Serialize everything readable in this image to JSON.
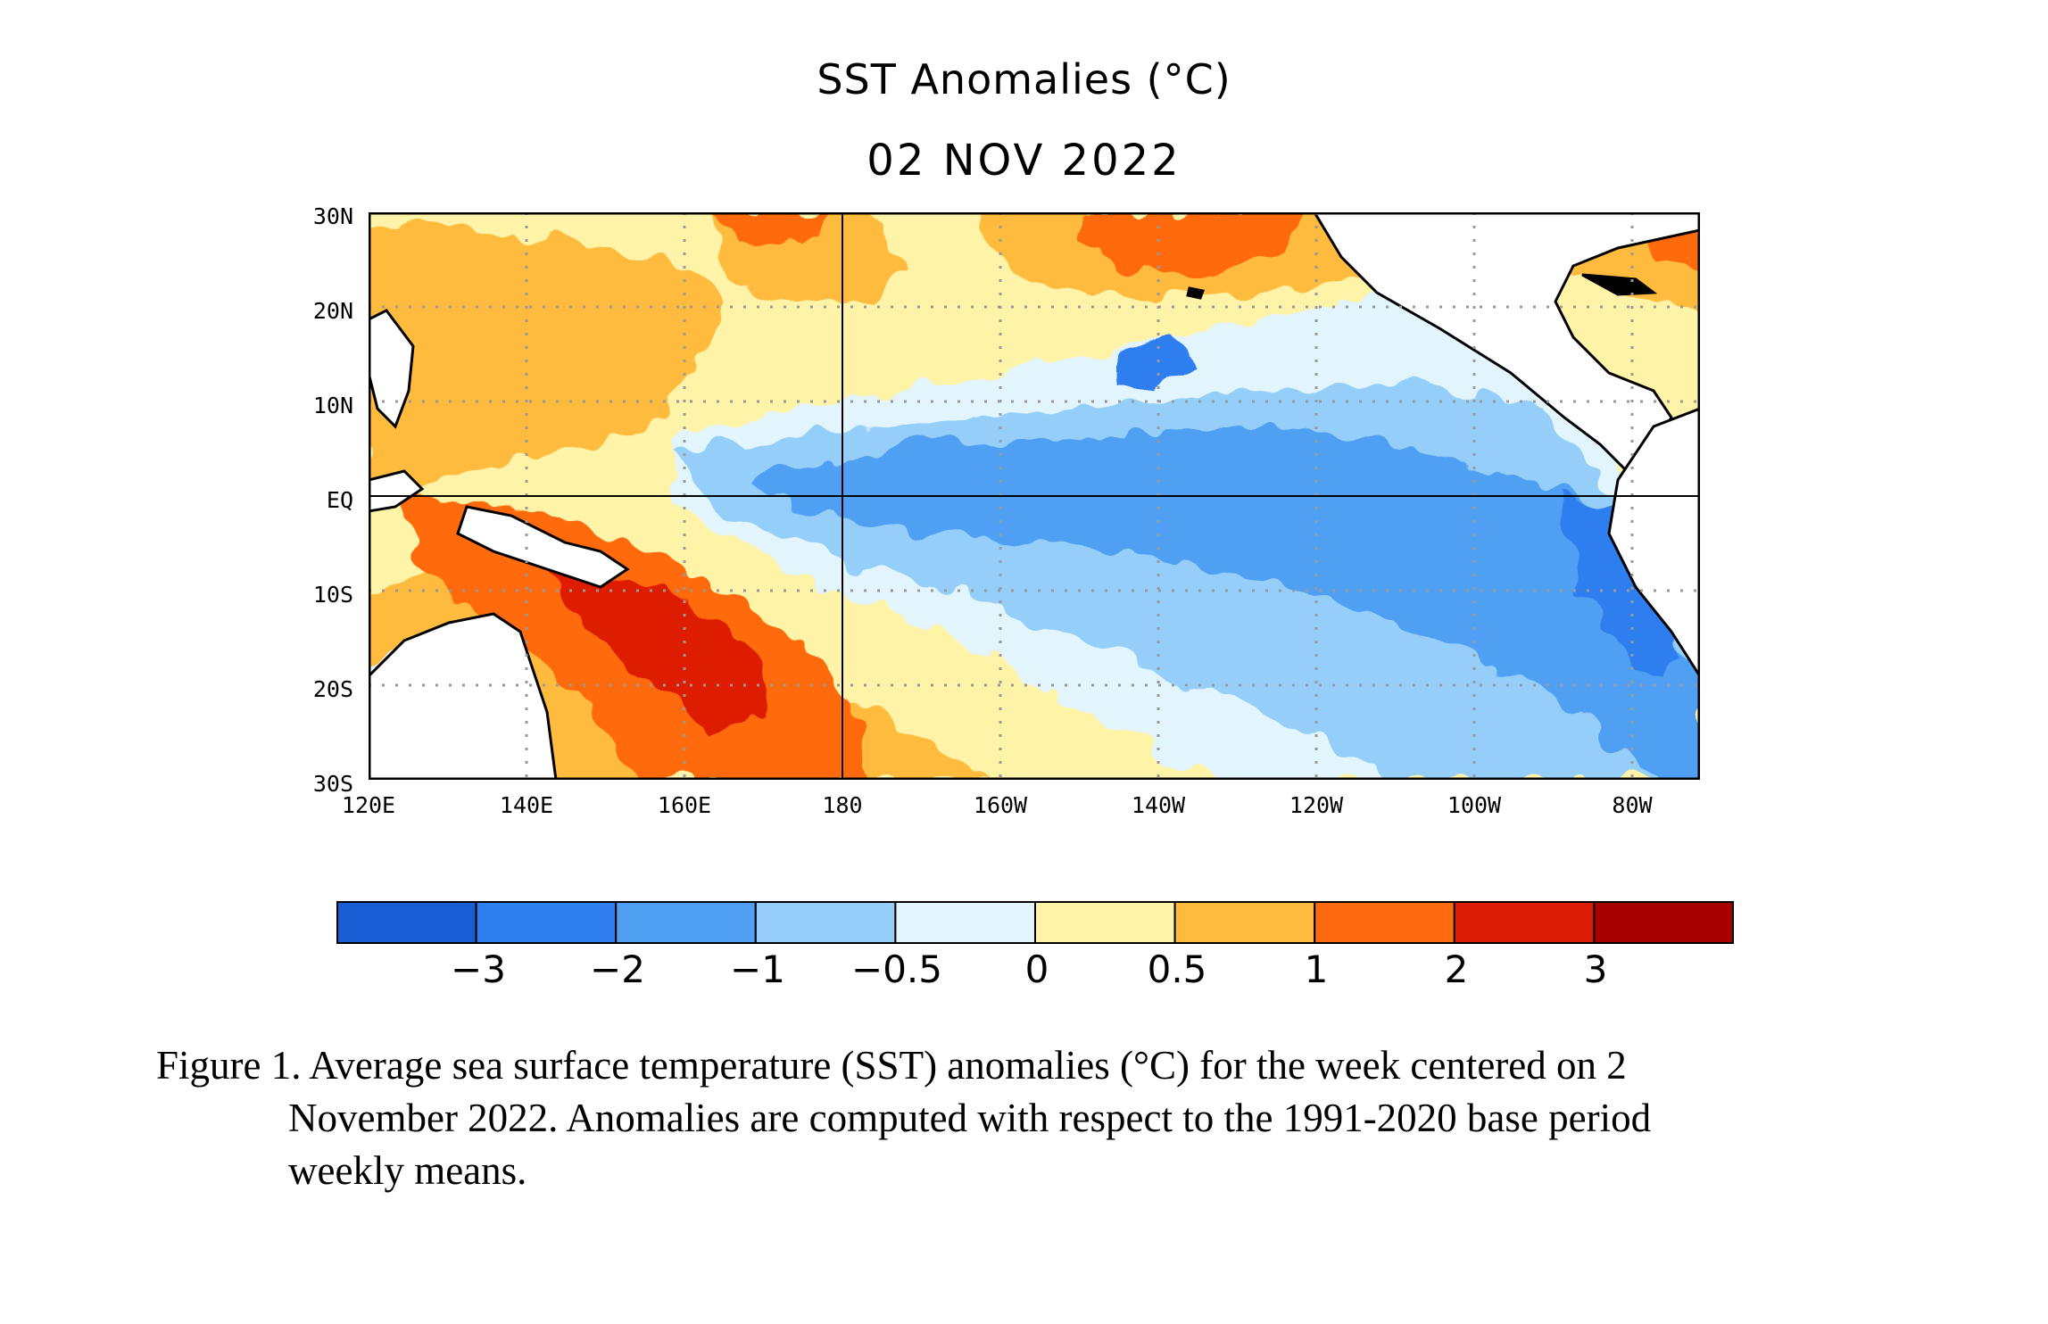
{
  "title": {
    "line1": "SST Anomalies (°C)",
    "line2": "02 NOV 2022"
  },
  "map": {
    "lat_labels": [
      "30N",
      "20N",
      "10N",
      "EQ",
      "10S",
      "20S",
      "30S"
    ],
    "lon_labels": [
      "120E",
      "140E",
      "160E",
      "180",
      "160W",
      "140W",
      "120W",
      "100W",
      "80W"
    ],
    "lat_range": [
      -30,
      30
    ],
    "lon_range_east_deg": [
      120,
      290
    ]
  },
  "colorbar": {
    "tick_labels": [
      "−3",
      "−2",
      "−1",
      "−0.5",
      "0",
      "0.5",
      "1",
      "2",
      "3"
    ],
    "bin_colors": [
      "#1a5ed6",
      "#2f7ef0",
      "#4fa0f2",
      "#95cef8",
      "#e2f5fd",
      "#fff3a8",
      "#ffbb3e",
      "#ff6a10",
      "#dd1c05",
      "#a80000"
    ]
  },
  "caption": {
    "line1": "Figure 1. Average sea surface temperature (SST) anomalies (°C) for the week centered on 2",
    "line2": "November 2022.  Anomalies are computed with respect to the 1991-2020 base period",
    "line3": "weekly means."
  }
}
